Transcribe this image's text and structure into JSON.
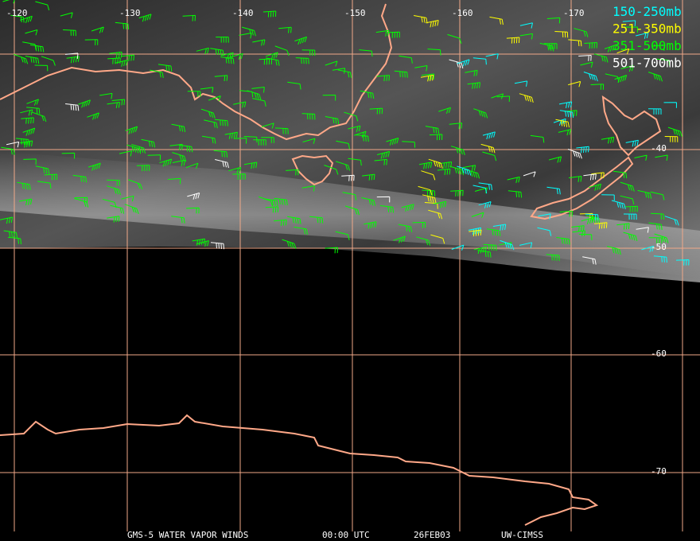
{
  "map": {
    "longitude_labels": [
      "-120",
      "-130",
      "-140",
      "-150",
      "-160",
      "-170"
    ],
    "latitude_labels": [
      "-40",
      "-50",
      "-60",
      "-70"
    ],
    "legend": [
      {
        "label": "150-250mb",
        "color": "#00ffff"
      },
      {
        "label": "251-350mb",
        "color": "#ffff00"
      },
      {
        "label": "351-500mb",
        "color": "#00ff00"
      },
      {
        "label": "501-700mb",
        "color": "#ffffff"
      }
    ],
    "footer": [
      "GMS-5 WATER VAPOR WINDS",
      "00:00 UTC",
      "26FEB03",
      "UW-CIMSS"
    ]
  }
}
